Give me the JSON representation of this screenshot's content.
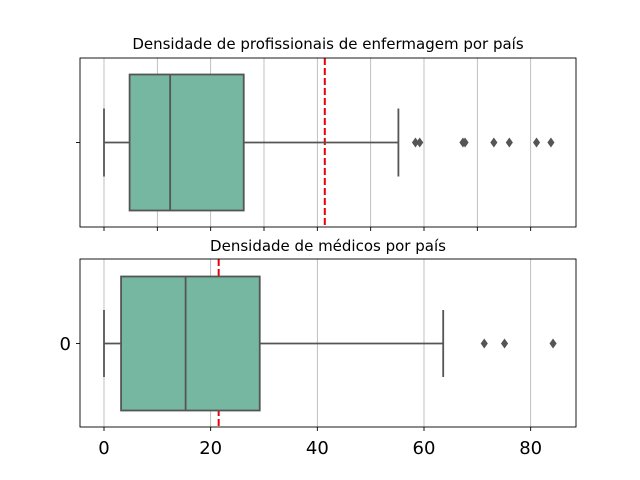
{
  "chart_data": [
    {
      "type": "boxplot",
      "title": "Densidade de profissionais de enfermagem por país",
      "xlim": [
        -4.5,
        88.5
      ],
      "grid": true,
      "category_labels": [
        ""
      ],
      "x_tick_labels_visible": false,
      "x_ticks": [
        0,
        10,
        20,
        30,
        40,
        50,
        60,
        70,
        80
      ],
      "box": {
        "whisker_low": 0,
        "q1": 4.8,
        "median": 12.4,
        "q3": 26.2,
        "whisker_high": 55.2
      },
      "outliers": [
        58.4,
        59.2,
        67.3,
        67.7,
        73.1,
        76.0,
        81.1,
        83.8
      ],
      "mean_line": 41.4,
      "colors": {
        "box": "#76b7a2",
        "edge": "#555555",
        "mean": "#e8000b",
        "grid": "#b0b0b0"
      }
    },
    {
      "type": "boxplot",
      "title": "Densidade de médicos por país",
      "xlim": [
        -4.5,
        88.5
      ],
      "grid": true,
      "category_labels": [
        "0"
      ],
      "x_tick_labels_visible": true,
      "x_ticks": [
        0,
        20,
        40,
        60,
        80
      ],
      "x_tick_labels": [
        "0",
        "20",
        "40",
        "60",
        "80"
      ],
      "box": {
        "whisker_low": 0,
        "q1": 3.2,
        "median": 15.3,
        "q3": 29.2,
        "whisker_high": 63.6
      },
      "outliers": [
        71.3,
        75.1,
        84.2
      ],
      "mean_line": 21.5,
      "colors": {
        "box": "#76b7a2",
        "edge": "#555555",
        "mean": "#e8000b",
        "grid": "#b0b0b0"
      }
    }
  ]
}
